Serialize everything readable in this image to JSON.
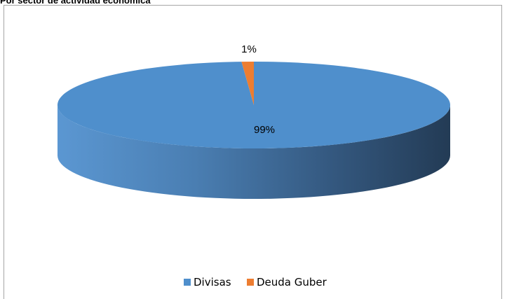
{
  "page": {
    "title": "Por sector de actividad económica"
  },
  "chart_data": {
    "type": "pie",
    "title": "",
    "categories": [
      "Divisas",
      "Deuda Guber"
    ],
    "values": [
      99,
      1
    ],
    "data_labels": [
      "99%",
      "1%"
    ],
    "legend": {
      "position": "bottom",
      "entries": [
        "Divisas",
        "Deuda Guber"
      ]
    },
    "colors": [
      "#4f8fcc",
      "#ed7d31"
    ],
    "style": "3d"
  }
}
